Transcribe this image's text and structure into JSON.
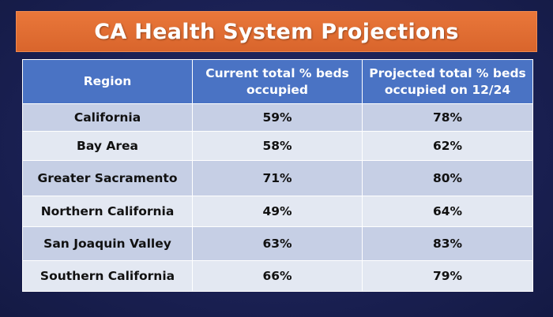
{
  "title": "CA Health System Projections",
  "table": {
    "headers": [
      "Region",
      "Current total % beds occupied",
      "Projected total % beds occupied on 12/24"
    ],
    "rows": [
      {
        "region": "California",
        "current": "59%",
        "projected": "78%"
      },
      {
        "region": "Bay Area",
        "current": "58%",
        "projected": "62%"
      },
      {
        "region": "Greater Sacramento",
        "current": "71%",
        "projected": "80%"
      },
      {
        "region": "Northern California",
        "current": "49%",
        "projected": "64%"
      },
      {
        "region": "San Joaquin Valley",
        "current": "63%",
        "projected": "83%"
      },
      {
        "region": "Southern California",
        "current": "66%",
        "projected": "79%"
      }
    ]
  },
  "colors": {
    "background": "#1b2155",
    "title_bar": "#e06d33",
    "header": "#4a73c4",
    "row_dark": "#c6cfe5",
    "row_light": "#e3e8f2"
  }
}
